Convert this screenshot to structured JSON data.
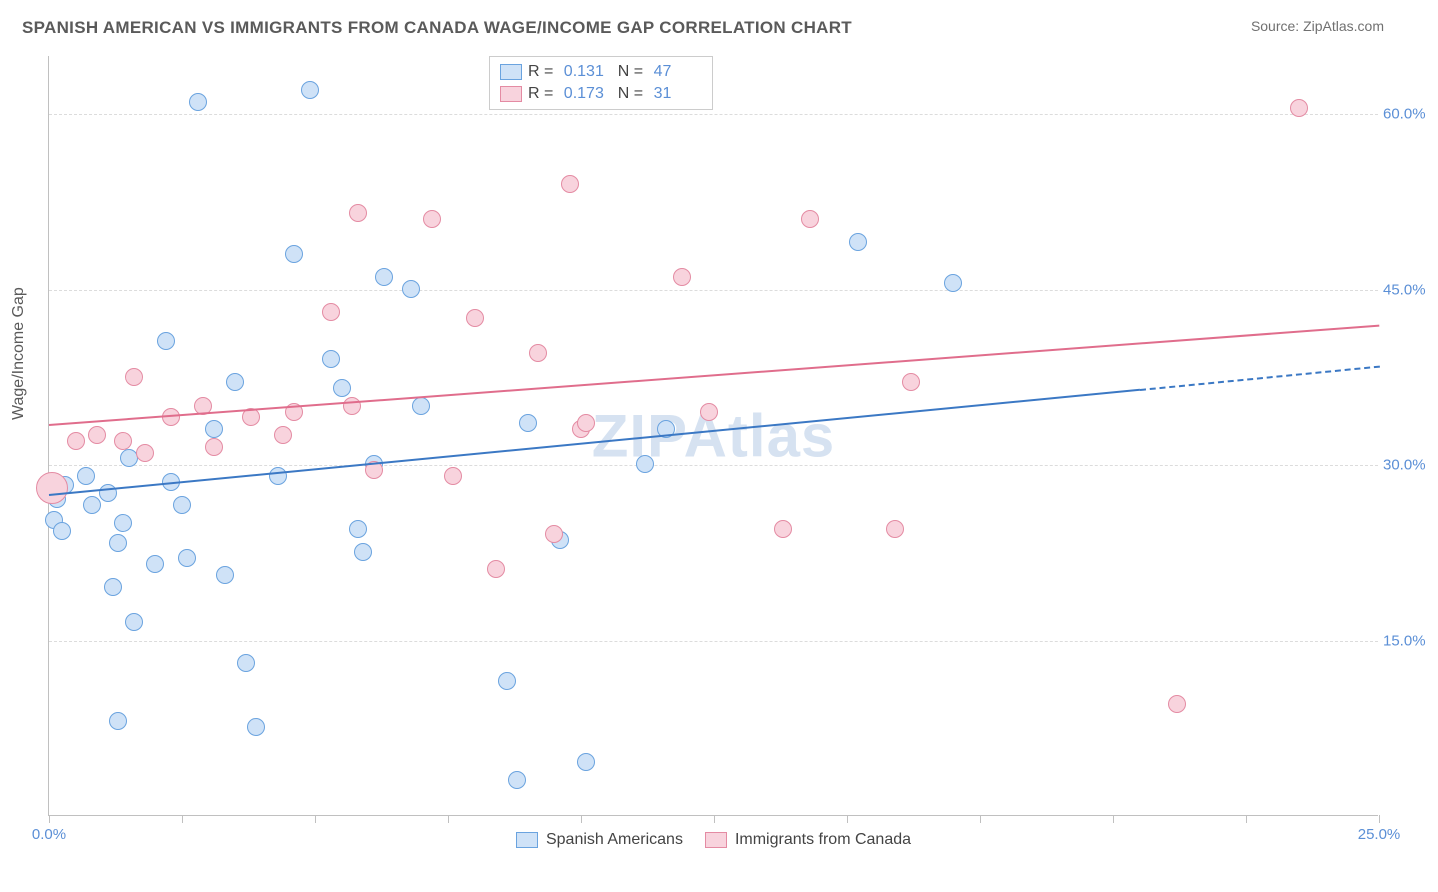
{
  "title": "SPANISH AMERICAN VS IMMIGRANTS FROM CANADA WAGE/INCOME GAP CORRELATION CHART",
  "source": "Source: ZipAtlas.com",
  "watermark": "ZIPAtlas",
  "ylabel": "Wage/Income Gap",
  "chart": {
    "type": "scatter",
    "xlim": [
      0,
      25
    ],
    "ylim": [
      0,
      65
    ],
    "y_ticks": [
      15,
      30,
      45,
      60
    ],
    "y_tick_labels": [
      "15.0%",
      "30.0%",
      "45.0%",
      "60.0%"
    ],
    "x_ticks": [
      0,
      2.5,
      5,
      7.5,
      10,
      12.5,
      15,
      17.5,
      20,
      22.5,
      25
    ],
    "x_tick_labels_shown": {
      "0": "0.0%",
      "25": "25.0%"
    },
    "background_color": "#ffffff",
    "grid_color": "#dcdcdc",
    "axis_color": "#c0c0c0",
    "marker_radius": 9,
    "marker_stroke_width": 1.2,
    "series": [
      {
        "name": "Spanish Americans",
        "fill": "#cfe2f7",
        "stroke": "#6aa3df",
        "trend_color": "#3b78c4",
        "r_value": "0.131",
        "n_value": "47",
        "trend": {
          "x1": 0,
          "y1": 27.5,
          "x2": 20.5,
          "y2": 36.5,
          "dash_after_x": 20.5,
          "x3": 25,
          "y3": 38.5
        },
        "points": [
          [
            0.1,
            25.2
          ],
          [
            0.2,
            28.0
          ],
          [
            0.3,
            28.2
          ],
          [
            0.15,
            27.0
          ],
          [
            0.25,
            24.3
          ],
          [
            0.7,
            29.0
          ],
          [
            0.8,
            26.5
          ],
          [
            1.1,
            27.5
          ],
          [
            1.3,
            23.3
          ],
          [
            1.4,
            25.0
          ],
          [
            1.5,
            30.5
          ],
          [
            1.2,
            19.5
          ],
          [
            1.6,
            16.5
          ],
          [
            1.3,
            8.0
          ],
          [
            2.2,
            40.5
          ],
          [
            2.0,
            21.5
          ],
          [
            2.3,
            28.5
          ],
          [
            2.5,
            26.5
          ],
          [
            2.6,
            22.0
          ],
          [
            2.8,
            61.0
          ],
          [
            3.1,
            33.0
          ],
          [
            3.3,
            20.5
          ],
          [
            3.5,
            37.0
          ],
          [
            3.7,
            13.0
          ],
          [
            3.9,
            7.5
          ],
          [
            4.3,
            29.0
          ],
          [
            4.6,
            48.0
          ],
          [
            4.9,
            62.0
          ],
          [
            5.3,
            39.0
          ],
          [
            5.5,
            36.5
          ],
          [
            5.8,
            24.5
          ],
          [
            5.9,
            22.5
          ],
          [
            6.1,
            30.0
          ],
          [
            6.3,
            46.0
          ],
          [
            6.8,
            45.0
          ],
          [
            7.0,
            35.0
          ],
          [
            8.6,
            11.5
          ],
          [
            8.8,
            3.0
          ],
          [
            9.0,
            33.5
          ],
          [
            9.6,
            23.5
          ],
          [
            10.1,
            4.5
          ],
          [
            11.2,
            30.0
          ],
          [
            11.6,
            33.0
          ],
          [
            15.2,
            49.0
          ],
          [
            17.0,
            45.5
          ]
        ]
      },
      {
        "name": "Immigrants from Canada",
        "fill": "#f8d3dd",
        "stroke": "#e48ba3",
        "trend_color": "#e06d8c",
        "r_value": "0.173",
        "n_value": "31",
        "trend": {
          "x1": 0,
          "y1": 33.5,
          "x2": 25,
          "y2": 42.0
        },
        "points": [
          [
            0.05,
            28.0,
            16
          ],
          [
            0.5,
            32.0
          ],
          [
            0.9,
            32.5
          ],
          [
            1.4,
            32.0
          ],
          [
            1.6,
            37.5
          ],
          [
            1.8,
            31.0
          ],
          [
            2.3,
            34.0
          ],
          [
            2.9,
            35.0
          ],
          [
            3.1,
            31.5
          ],
          [
            3.8,
            34.0
          ],
          [
            4.4,
            32.5
          ],
          [
            4.6,
            34.5
          ],
          [
            5.3,
            43.0
          ],
          [
            5.7,
            35.0
          ],
          [
            5.8,
            51.5
          ],
          [
            6.1,
            29.5
          ],
          [
            7.2,
            51.0
          ],
          [
            7.6,
            29.0
          ],
          [
            8.0,
            42.5
          ],
          [
            8.4,
            21.0
          ],
          [
            9.2,
            39.5
          ],
          [
            9.5,
            24.0
          ],
          [
            9.8,
            54.0
          ],
          [
            10.0,
            33.0
          ],
          [
            10.1,
            33.5
          ],
          [
            11.9,
            46.0
          ],
          [
            12.4,
            34.5
          ],
          [
            13.8,
            24.5
          ],
          [
            14.3,
            51.0
          ],
          [
            15.9,
            24.5
          ],
          [
            16.2,
            37.0
          ],
          [
            21.2,
            9.5
          ],
          [
            23.5,
            60.5
          ]
        ]
      }
    ]
  },
  "legend_bottom": [
    {
      "label": "Spanish Americans",
      "fill": "#cfe2f7",
      "stroke": "#6aa3df"
    },
    {
      "label": "Immigrants from Canada",
      "fill": "#f8d3dd",
      "stroke": "#e48ba3"
    }
  ]
}
